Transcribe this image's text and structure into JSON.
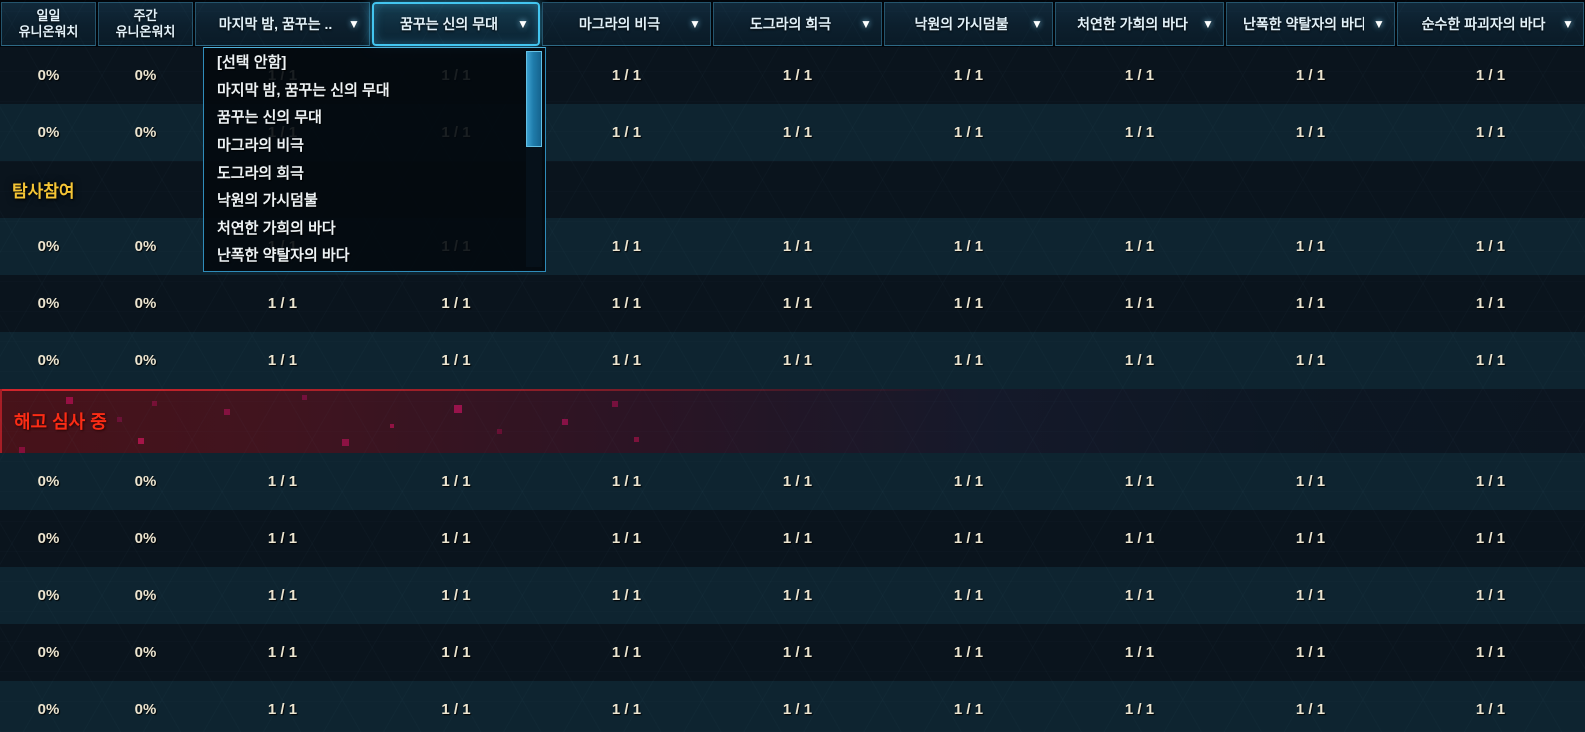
{
  "header": {
    "stat_columns": [
      {
        "line1": "일일",
        "line2": "유니온워치"
      },
      {
        "line1": "주간",
        "line2": "유니온워치"
      }
    ],
    "filter_columns": [
      {
        "label": "마지막 밤, 꿈꾸는 ..",
        "active": false
      },
      {
        "label": "꿈꾸는 신의 무대",
        "active": true
      },
      {
        "label": "마그라의 비극",
        "active": false
      },
      {
        "label": "도그라의 희극",
        "active": false
      },
      {
        "label": "낙원의 가시덤불",
        "active": false
      },
      {
        "label": "처연한 가희의 바다",
        "active": false
      },
      {
        "label": "난폭한 약탈자의 바다",
        "active": false
      },
      {
        "label": "순수한 파괴자의 바다",
        "active": false
      }
    ],
    "dropdown_arrow_glyph": "▼"
  },
  "dropdown": {
    "open_for_column": "꿈꾸는 신의 무대",
    "items": [
      "[선택 안함]",
      "마지막 밤, 꿈꾸는 신의 무대",
      "꿈꾸는 신의 무대",
      "마그라의 비극",
      "도그라의 희극",
      "낙원의 가시덤불",
      "처연한 가희의 바다",
      "난폭한 약탈자의 바다"
    ],
    "has_scrollbar": true
  },
  "rows": [
    {
      "kind": "values",
      "daily": "0%",
      "weekly": "0%",
      "counts": [
        "1 / 1",
        "1 / 1",
        "1 / 1",
        "1 / 1",
        "1 / 1",
        "1 / 1",
        "1 / 1",
        "1 / 1"
      ]
    },
    {
      "kind": "values",
      "daily": "0%",
      "weekly": "0%",
      "counts": [
        "1 / 1",
        "1 / 1",
        "1 / 1",
        "1 / 1",
        "1 / 1",
        "1 / 1",
        "1 / 1",
        "1 / 1"
      ]
    },
    {
      "kind": "status-label",
      "label": "탐사참여",
      "status": "exploration"
    },
    {
      "kind": "values",
      "daily": "0%",
      "weekly": "0%",
      "counts": [
        "1 / 1",
        "1 / 1",
        "1 / 1",
        "1 / 1",
        "1 / 1",
        "1 / 1",
        "1 / 1",
        "1 / 1"
      ]
    },
    {
      "kind": "values",
      "daily": "0%",
      "weekly": "0%",
      "counts": [
        "1 / 1",
        "1 / 1",
        "1 / 1",
        "1 / 1",
        "1 / 1",
        "1 / 1",
        "1 / 1",
        "1 / 1"
      ]
    },
    {
      "kind": "values",
      "daily": "0%",
      "weekly": "0%",
      "counts": [
        "1 / 1",
        "1 / 1",
        "1 / 1",
        "1 / 1",
        "1 / 1",
        "1 / 1",
        "1 / 1",
        "1 / 1"
      ]
    },
    {
      "kind": "status-label",
      "label": "해고 심사 중",
      "status": "dismissal"
    },
    {
      "kind": "values",
      "daily": "0%",
      "weekly": "0%",
      "counts": [
        "1 / 1",
        "1 / 1",
        "1 / 1",
        "1 / 1",
        "1 / 1",
        "1 / 1",
        "1 / 1",
        "1 / 1"
      ]
    },
    {
      "kind": "values",
      "daily": "0%",
      "weekly": "0%",
      "counts": [
        "1 / 1",
        "1 / 1",
        "1 / 1",
        "1 / 1",
        "1 / 1",
        "1 / 1",
        "1 / 1",
        "1 / 1"
      ]
    },
    {
      "kind": "values",
      "daily": "0%",
      "weekly": "0%",
      "counts": [
        "1 / 1",
        "1 / 1",
        "1 / 1",
        "1 / 1",
        "1 / 1",
        "1 / 1",
        "1 / 1",
        "1 / 1"
      ]
    },
    {
      "kind": "values",
      "daily": "0%",
      "weekly": "0%",
      "counts": [
        "1 / 1",
        "1 / 1",
        "1 / 1",
        "1 / 1",
        "1 / 1",
        "1 / 1",
        "1 / 1",
        "1 / 1"
      ]
    },
    {
      "kind": "values",
      "daily": "0%",
      "weekly": "0%",
      "counts": [
        "1 / 1",
        "1 / 1",
        "1 / 1",
        "1 / 1",
        "1 / 1",
        "1 / 1",
        "1 / 1",
        "1 / 1"
      ]
    }
  ],
  "colors": {
    "row_dark": "#0a141d",
    "row_light": "#0e2430",
    "value_text": "#ece5d0",
    "exploration_text": "#f5c535",
    "dismissal_text": "#fb2c15",
    "active_header_border": "#43c5ef",
    "dropdown_border": "#2f8cba",
    "scroll_thumb": "#1f7cab"
  }
}
